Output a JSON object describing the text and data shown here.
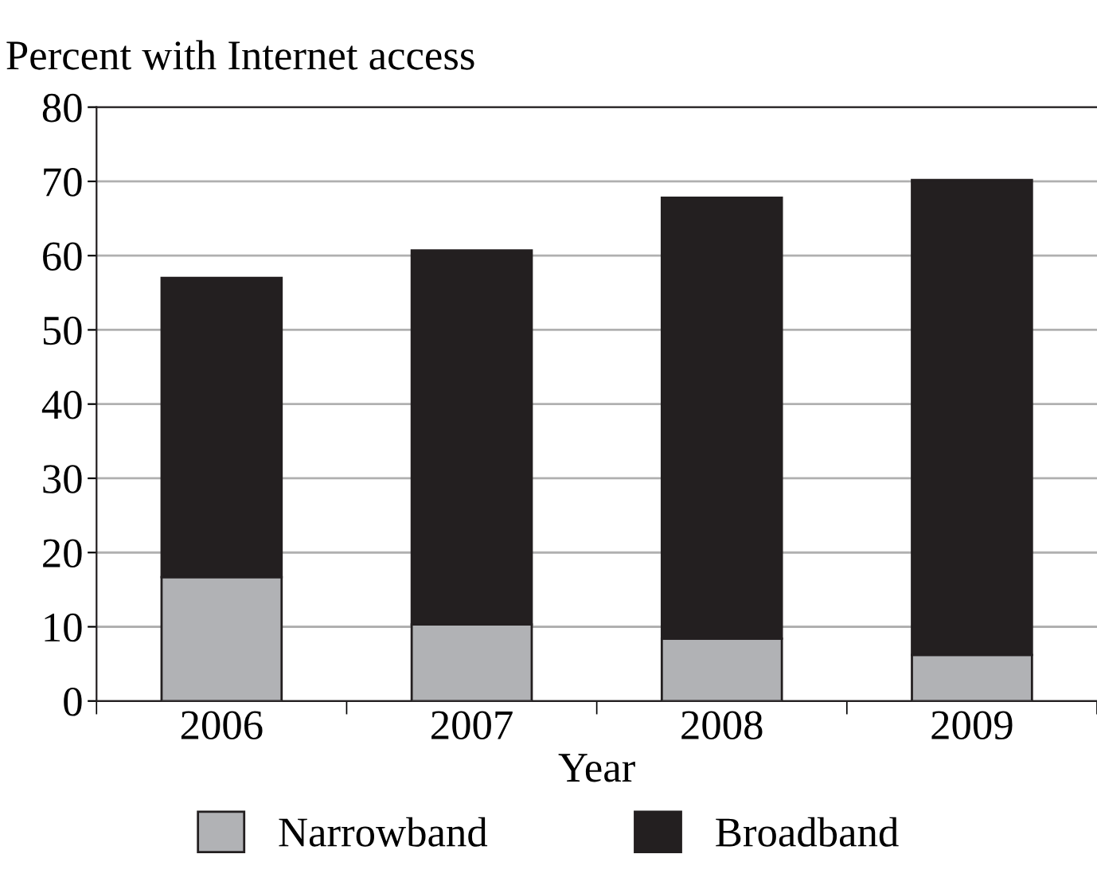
{
  "chart_data": {
    "type": "bar",
    "ylabel": "Percent with Internet access",
    "xlabel": "Year",
    "categories": [
      "2006",
      "2007",
      "2008",
      "2009"
    ],
    "series": [
      {
        "name": "Narrowband",
        "color": "#b1b2b5",
        "values": [
          16.7,
          10.3,
          8.4,
          6.2
        ]
      },
      {
        "name": "Broadband",
        "color": "#231f20",
        "values": [
          40.3,
          50.4,
          59.4,
          64.0
        ]
      }
    ],
    "stacked": true,
    "ylim": [
      0,
      80
    ],
    "yticks": [
      0,
      10,
      20,
      30,
      40,
      50,
      60,
      70,
      80
    ],
    "grid": "y",
    "legend": "bottom"
  }
}
